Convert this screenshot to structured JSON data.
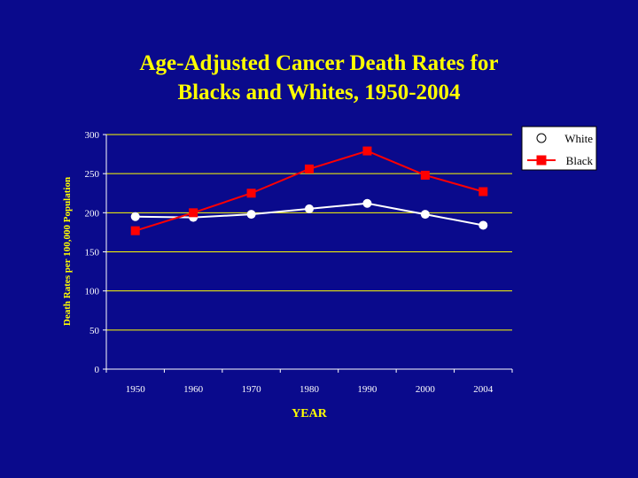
{
  "title_line1": "Age-Adjusted Cancer Death Rates for",
  "title_line2": "Blacks and Whites, 1950-2004",
  "colors": {
    "background": "#0a0a8c",
    "title": "#ffff00",
    "axis_text": "#ffff00",
    "tick_text": "#ffffff",
    "white_series": "#ffffff",
    "black_series": "#ff0000",
    "legend_bg": "#ffffff",
    "legend_text": "#000000"
  },
  "chart_data": {
    "type": "line",
    "title": "Age-Adjusted Cancer Death Rates for Blacks and Whites, 1950-2004",
    "xlabel": "YEAR",
    "ylabel": "Death Rates per 100,000 Population",
    "categories": [
      "1950",
      "1960",
      "1970",
      "1980",
      "1990",
      "2000",
      "2004"
    ],
    "ylim": [
      0,
      300
    ],
    "yticks": [
      0,
      50,
      100,
      150,
      200,
      250,
      300
    ],
    "grid": true,
    "legend_position": "top-right",
    "series": [
      {
        "name": "White",
        "color": "#ffffff",
        "marker": "circle",
        "values": [
          195,
          194,
          198,
          205,
          212,
          198,
          184
        ]
      },
      {
        "name": "Black",
        "color": "#ff0000",
        "marker": "square",
        "values": [
          177,
          200,
          225,
          256,
          279,
          248,
          227
        ]
      }
    ]
  }
}
